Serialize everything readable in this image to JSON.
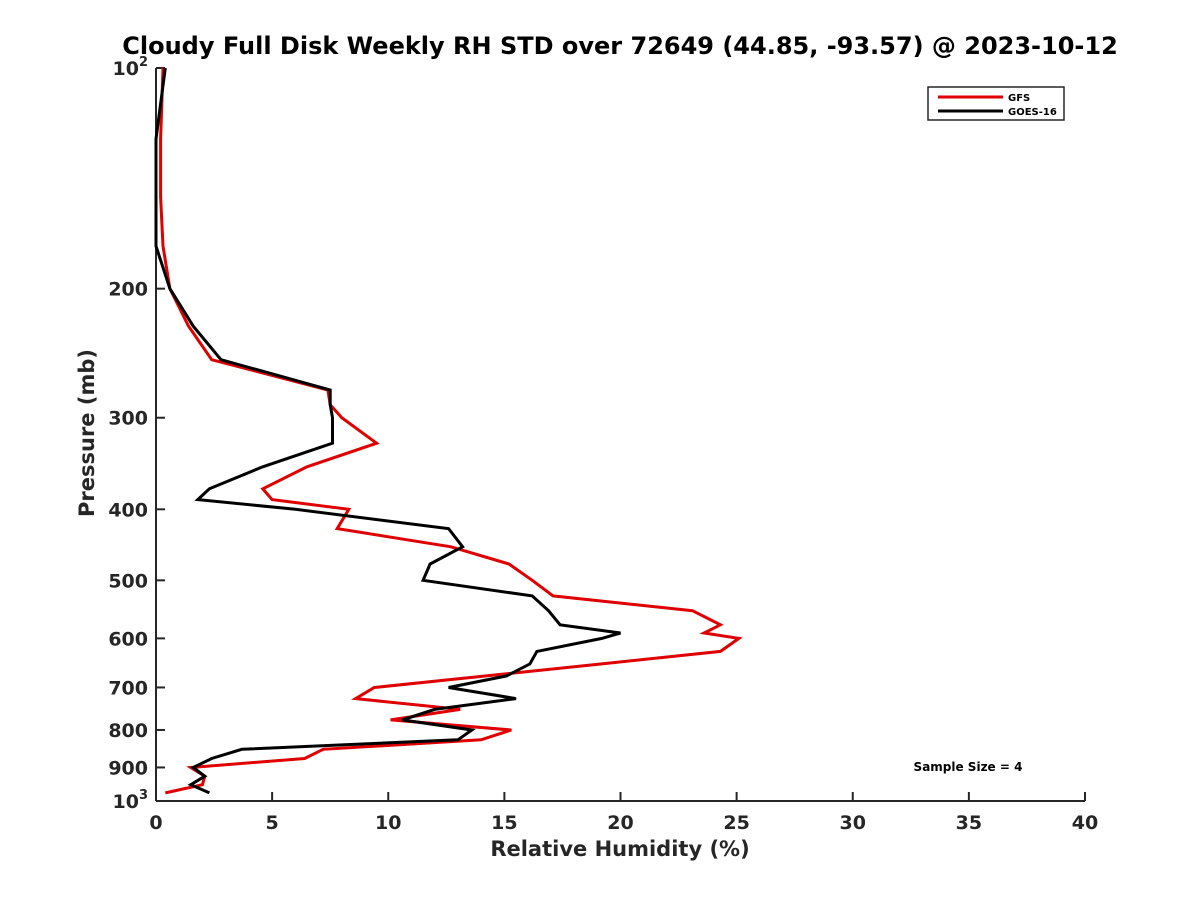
{
  "chart_data": {
    "type": "line",
    "title": "Cloudy Full Disk Weekly RH STD over 72649 (44.85, -93.57) @ 2023-10-12",
    "xlabel": "Relative Humidity (%)",
    "ylabel": "Pressure (mb)",
    "xlim": [
      0,
      40
    ],
    "ylim": [
      100,
      1000
    ],
    "y_scale": "log",
    "y_reversed": true,
    "x_ticks": [
      0,
      5,
      10,
      15,
      20,
      25,
      30,
      35,
      40
    ],
    "x_tick_labels": [
      "0",
      "5",
      "10",
      "15",
      "20",
      "25",
      "30",
      "35",
      "40"
    ],
    "y_ticks": [
      100,
      200,
      300,
      400,
      500,
      600,
      700,
      800,
      900,
      1000
    ],
    "y_tick_labels": [
      {
        "base": "10",
        "exp": "2"
      },
      {
        "base": "200",
        "exp": ""
      },
      {
        "base": "300",
        "exp": ""
      },
      {
        "base": "400",
        "exp": ""
      },
      {
        "base": "500",
        "exp": ""
      },
      {
        "base": "600",
        "exp": ""
      },
      {
        "base": "700",
        "exp": ""
      },
      {
        "base": "800",
        "exp": ""
      },
      {
        "base": "900",
        "exp": ""
      },
      {
        "base": "10",
        "exp": "3"
      }
    ],
    "grid": false,
    "legend_position": "top-right",
    "annotation": "Sample Size = 4",
    "series": [
      {
        "name": "GFS",
        "color": "#e00000",
        "points": [
          [
            0.3,
            100
          ],
          [
            0.2,
            125
          ],
          [
            0.2,
            150
          ],
          [
            0.3,
            175
          ],
          [
            0.6,
            200
          ],
          [
            1.4,
            225
          ],
          [
            2.4,
            250
          ],
          [
            7.4,
            275
          ],
          [
            7.5,
            288
          ],
          [
            8.0,
            300
          ],
          [
            9.5,
            325
          ],
          [
            6.5,
            350
          ],
          [
            4.6,
            375
          ],
          [
            5.0,
            388
          ],
          [
            8.3,
            400
          ],
          [
            7.8,
            425
          ],
          [
            12.7,
            450
          ],
          [
            15.2,
            475
          ],
          [
            16.2,
            500
          ],
          [
            17.1,
            525
          ],
          [
            23.1,
            550
          ],
          [
            24.3,
            575
          ],
          [
            23.6,
            590
          ],
          [
            25.1,
            600
          ],
          [
            24.3,
            625
          ],
          [
            19.2,
            650
          ],
          [
            9.4,
            700
          ],
          [
            8.6,
            725
          ],
          [
            13.1,
            750
          ],
          [
            10.1,
            775
          ],
          [
            15.3,
            800
          ],
          [
            14.0,
            825
          ],
          [
            7.2,
            850
          ],
          [
            6.4,
            875
          ],
          [
            1.5,
            900
          ],
          [
            2.1,
            925
          ],
          [
            2.0,
            950
          ],
          [
            0.4,
            975
          ]
        ]
      },
      {
        "name": "GOES-16",
        "color": "#000000",
        "points": [
          [
            0.4,
            100
          ],
          [
            0.0,
            125
          ],
          [
            0.0,
            150
          ],
          [
            0.0,
            175
          ],
          [
            0.6,
            200
          ],
          [
            1.6,
            225
          ],
          [
            2.8,
            250
          ],
          [
            7.5,
            275
          ],
          [
            7.5,
            288
          ],
          [
            7.6,
            300
          ],
          [
            7.6,
            325
          ],
          [
            4.6,
            350
          ],
          [
            2.3,
            375
          ],
          [
            1.8,
            388
          ],
          [
            6.0,
            400
          ],
          [
            12.6,
            425
          ],
          [
            13.2,
            450
          ],
          [
            11.8,
            475
          ],
          [
            11.5,
            500
          ],
          [
            16.2,
            525
          ],
          [
            16.9,
            550
          ],
          [
            17.4,
            575
          ],
          [
            20.0,
            590
          ],
          [
            19.2,
            600
          ],
          [
            16.4,
            625
          ],
          [
            16.1,
            650
          ],
          [
            15.1,
            675
          ],
          [
            12.6,
            700
          ],
          [
            15.5,
            725
          ],
          [
            12.0,
            750
          ],
          [
            10.6,
            775
          ],
          [
            13.6,
            800
          ],
          [
            13.0,
            825
          ],
          [
            3.7,
            850
          ],
          [
            2.4,
            875
          ],
          [
            1.6,
            900
          ],
          [
            2.1,
            925
          ],
          [
            1.5,
            950
          ],
          [
            2.3,
            975
          ]
        ]
      }
    ]
  }
}
